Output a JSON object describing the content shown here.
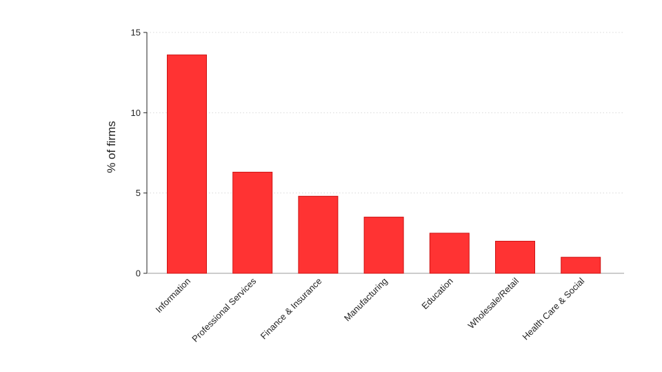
{
  "chart_data": {
    "type": "bar",
    "title": "",
    "xlabel": "",
    "ylabel": "% of firms",
    "categories": [
      "Information",
      "Professional Services",
      "Finance & Insurance",
      "Manufacturing",
      "Education",
      "Wholesale/Retail",
      "Health Care & Social"
    ],
    "values": [
      13.6,
      6.3,
      4.8,
      3.5,
      2.5,
      2.0,
      1.0
    ],
    "ylim": [
      0,
      15
    ],
    "yticks": [
      0,
      5,
      10,
      15
    ],
    "grid": true,
    "bar_color": "#ff3333",
    "bar_edge_color": "#cc1111"
  }
}
